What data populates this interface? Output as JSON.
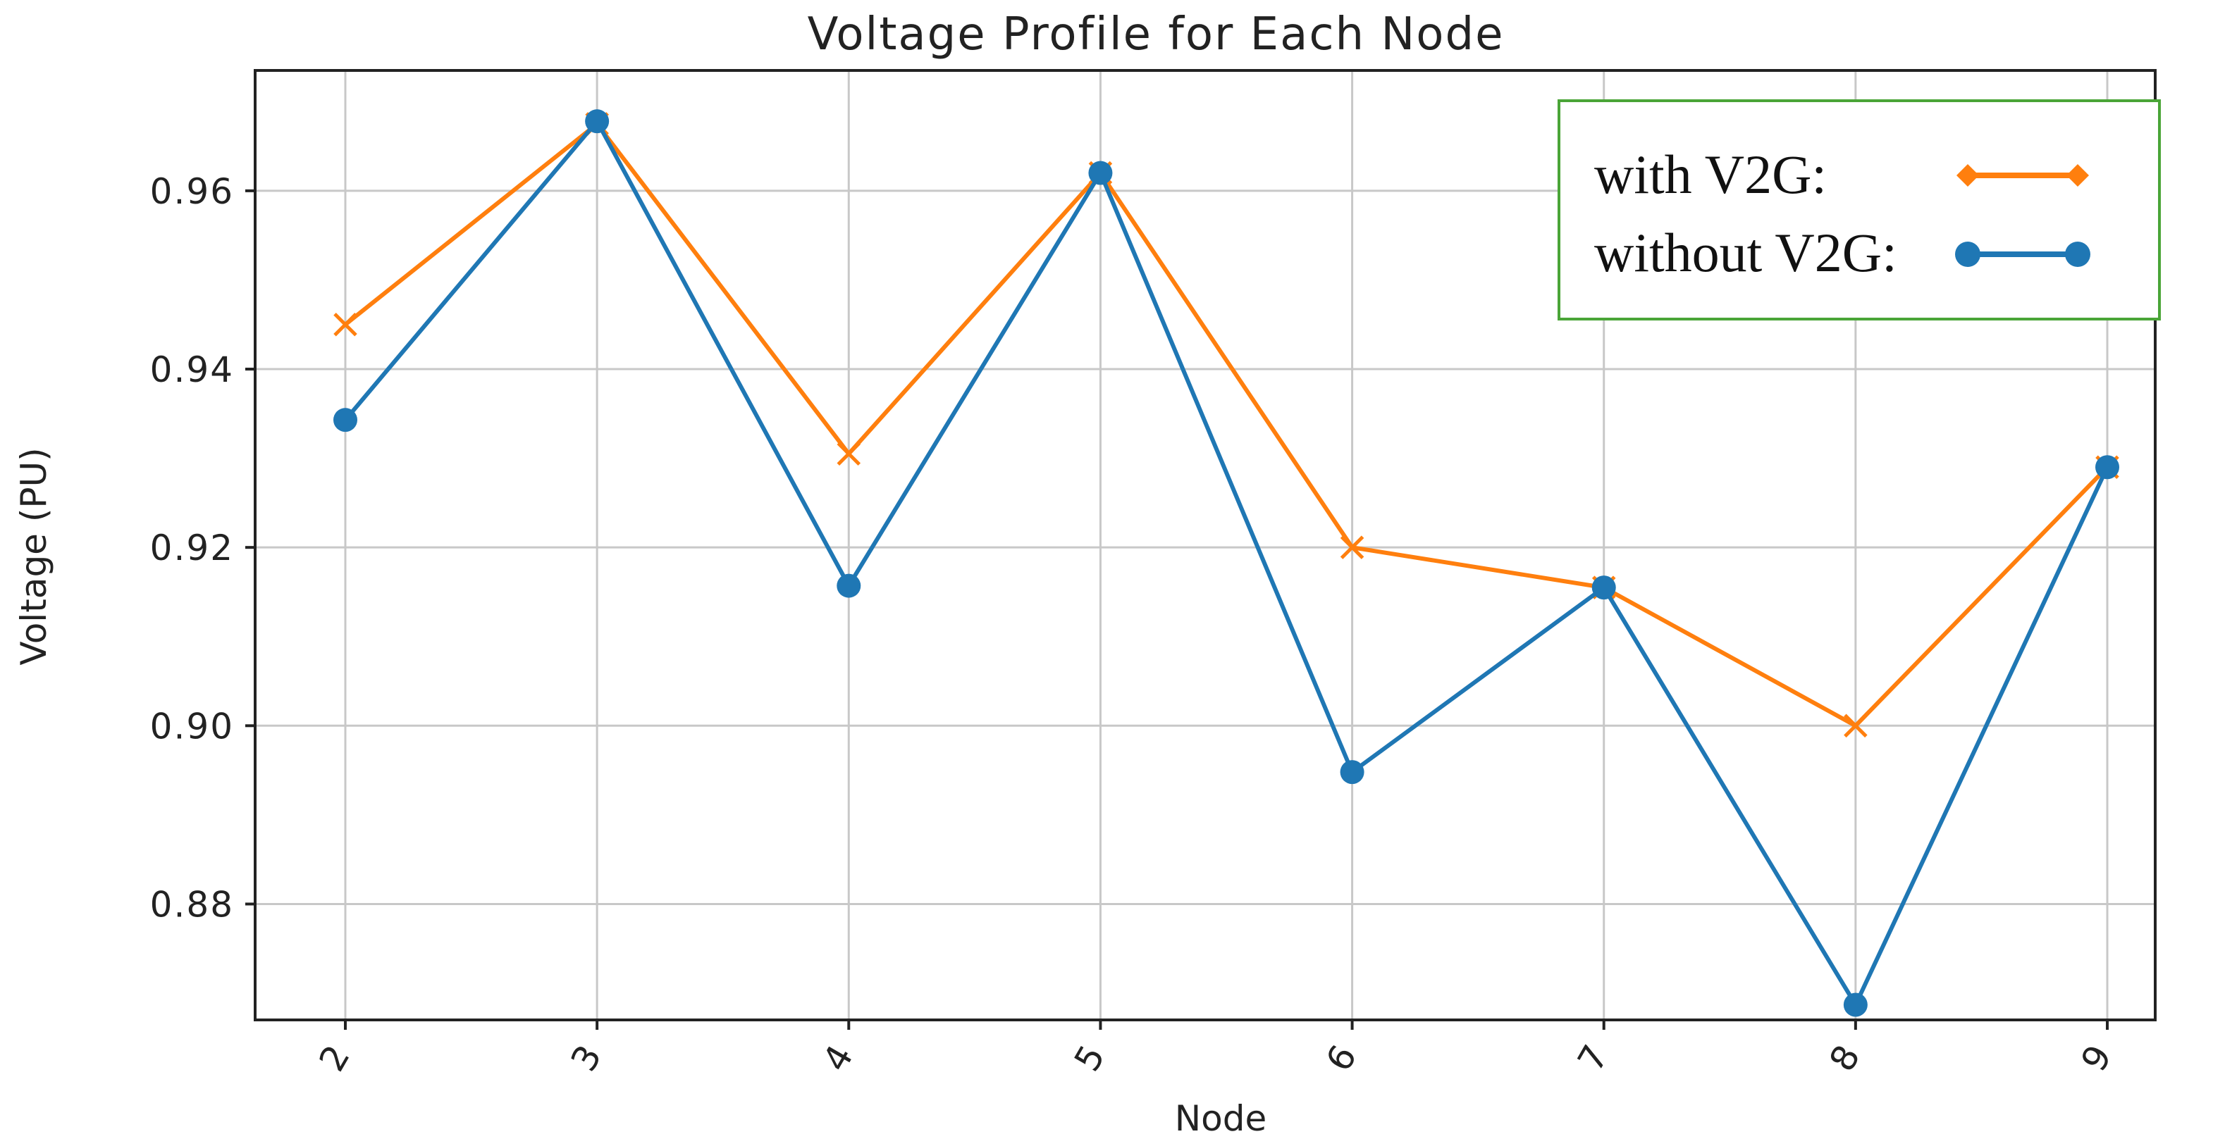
{
  "chart_data": {
    "type": "line",
    "title": "Voltage Profile for Each Node",
    "xlabel": "Node",
    "ylabel": "Voltage (PU)",
    "categories": [
      "2",
      "3",
      "4",
      "5",
      "6",
      "7",
      "8",
      "9"
    ],
    "ylim": [
      0.867,
      0.9735
    ],
    "yticks": [
      0.88,
      0.9,
      0.92,
      0.94,
      0.96
    ],
    "ytick_labels": [
      "0.88",
      "0.90",
      "0.92",
      "0.94",
      "0.96"
    ],
    "grid": true,
    "legend_position": "top-right",
    "series": [
      {
        "name": "with V2G:",
        "color": "#ff7f0e",
        "marker": "x",
        "values": [
          0.945,
          0.9675,
          0.9305,
          0.962,
          0.92,
          0.9155,
          0.9,
          0.929
        ]
      },
      {
        "name": "without V2G:",
        "color": "#1f77b4",
        "marker": "circle",
        "values": [
          0.9343,
          0.9678,
          0.9157,
          0.962,
          0.8948,
          0.9155,
          0.8687,
          0.929
        ]
      }
    ]
  }
}
